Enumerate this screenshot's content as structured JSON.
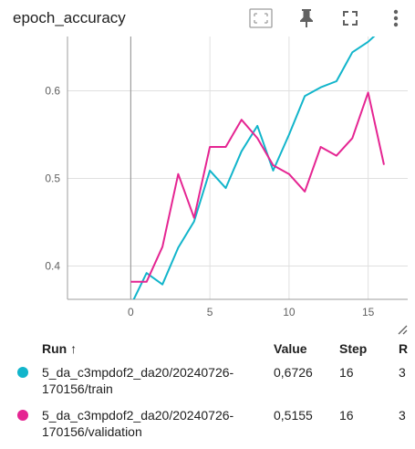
{
  "header": {
    "title": "epoch_accuracy"
  },
  "chart_data": {
    "type": "line",
    "title": "epoch_accuracy",
    "xlabel": "",
    "ylabel": "",
    "xlim": [
      -4,
      17.5
    ],
    "ylim": [
      0.362,
      0.662
    ],
    "x_ticks": [
      0,
      5,
      10,
      15
    ],
    "x_tick_labels": [
      "0",
      "5",
      "10",
      "15"
    ],
    "y_ticks": [
      0.4,
      0.5,
      0.6
    ],
    "y_tick_labels": [
      "0.4",
      "0.5",
      "0.6"
    ],
    "grid": true,
    "series": [
      {
        "name": "5_da_c3mpdof2_da20/20240726-170156/train",
        "color": "#12b5cb",
        "x": [
          0,
          1,
          2,
          3,
          4,
          5,
          6,
          7,
          8,
          9,
          10,
          11,
          12,
          13,
          14,
          15,
          16
        ],
        "y": [
          0.355,
          0.392,
          0.379,
          0.421,
          0.451,
          0.509,
          0.489,
          0.531,
          0.56,
          0.509,
          0.55,
          0.594,
          0.604,
          0.611,
          0.644,
          0.656,
          0.6726
        ]
      },
      {
        "name": "5_da_c3mpdof2_da20/20240726-170156/validation",
        "color": "#e52592",
        "x": [
          0,
          1,
          2,
          3,
          4,
          5,
          6,
          7,
          8,
          9,
          10,
          11,
          12,
          13,
          14,
          15,
          16
        ],
        "y": [
          0.382,
          0.382,
          0.422,
          0.505,
          0.455,
          0.536,
          0.536,
          0.567,
          0.546,
          0.515,
          0.505,
          0.485,
          0.536,
          0.526,
          0.546,
          0.598,
          0.5155
        ]
      }
    ]
  },
  "table": {
    "headers": {
      "run": "Run ↑",
      "value": "Value",
      "step": "Step",
      "relative": "R"
    },
    "rows": [
      {
        "color": "#12b5cb",
        "run": "5_da_c3mpdof2_da20/20240726-170156/train",
        "value": "0,6726",
        "step": "16",
        "relative": "3"
      },
      {
        "color": "#e52592",
        "run": "5_da_c3mpdof2_da20/20240726-170156/validation",
        "value": "0,5155",
        "step": "16",
        "relative": "3"
      }
    ]
  },
  "icons": {
    "fit": "fit-domain-icon",
    "pin": "pin-icon",
    "fullscreen": "fullscreen-icon",
    "more": "more-vert-icon",
    "resize": "resize-handle-icon"
  }
}
